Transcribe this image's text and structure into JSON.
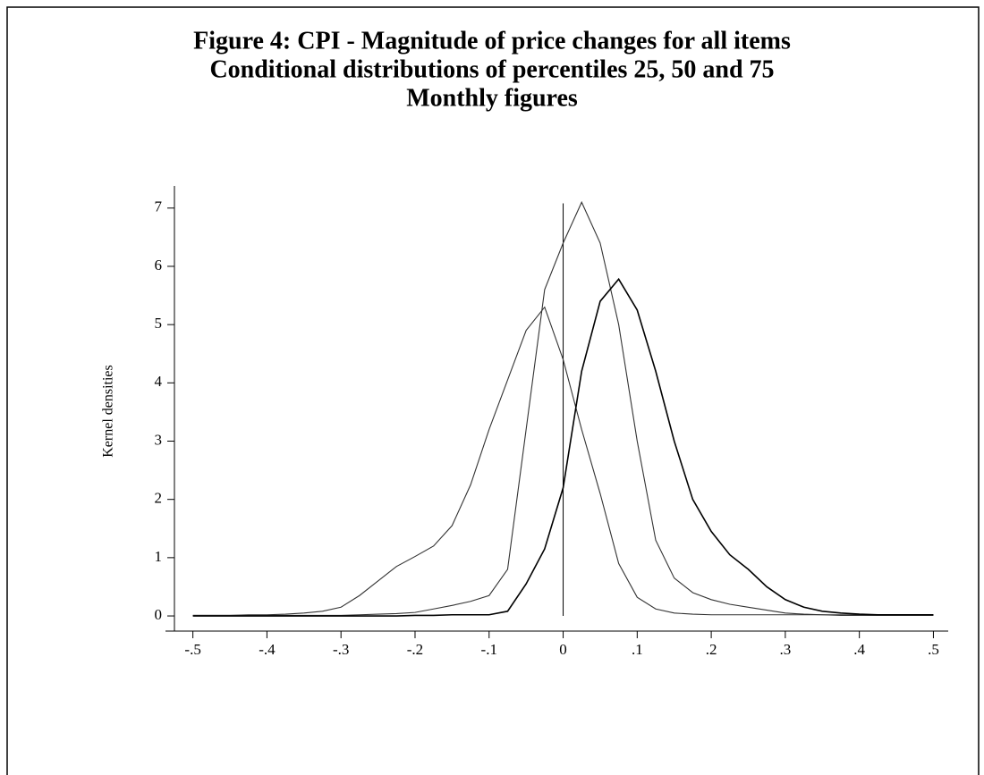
{
  "chart_data": {
    "type": "line",
    "title": [
      "Figure 4: CPI - Magnitude of price changes for all items",
      "Conditional distributions of percentiles 25, 50 and 75",
      "Monthly figures"
    ],
    "y_label": "Kernel densities",
    "x": [
      -0.5,
      -0.475,
      -0.45,
      -0.425,
      -0.4,
      -0.375,
      -0.35,
      -0.325,
      -0.3,
      -0.275,
      -0.25,
      -0.225,
      -0.2,
      -0.175,
      -0.15,
      -0.125,
      -0.1,
      -0.075,
      -0.05,
      -0.025,
      0,
      0.025,
      0.05,
      0.075,
      0.1,
      0.125,
      0.15,
      0.175,
      0.2,
      0.225,
      0.25,
      0.275,
      0.3,
      0.325,
      0.35,
      0.375,
      0.4,
      0.425,
      0.45,
      0.475,
      0.5
    ],
    "series": [
      {
        "color": "#333333",
        "values": [
          0.01,
          0.01,
          0.01,
          0.02,
          0.02,
          0.03,
          0.05,
          0.08,
          0.15,
          0.35,
          0.6,
          0.85,
          1.02,
          1.2,
          1.55,
          2.25,
          3.2,
          4.05,
          4.9,
          5.3,
          4.4,
          3.2,
          2.1,
          0.9,
          0.32,
          0.12,
          0.05,
          0.03,
          0.02,
          0.02,
          0.02,
          0.02,
          0.02,
          0.02,
          0.02,
          0.02,
          0.02,
          0.02,
          0.02,
          0.02,
          0.02
        ]
      },
      {
        "color": "#333333",
        "values": [
          0.01,
          0.01,
          0.01,
          0.01,
          0.01,
          0.01,
          0.01,
          0.01,
          0.01,
          0.02,
          0.03,
          0.04,
          0.06,
          0.12,
          0.18,
          0.25,
          0.35,
          0.8,
          3.2,
          5.6,
          6.4,
          7.1,
          6.4,
          5.0,
          3.0,
          1.3,
          0.65,
          0.4,
          0.28,
          0.2,
          0.15,
          0.1,
          0.05,
          0.03,
          0.02,
          0.01,
          0.01,
          0.01,
          0.01,
          0.01,
          0.01
        ]
      },
      {
        "color": "#000000",
        "values": [
          0,
          0,
          0,
          0,
          0,
          0,
          0,
          0,
          0,
          0,
          0,
          0,
          0.01,
          0.01,
          0.02,
          0.02,
          0.02,
          0.08,
          0.55,
          1.15,
          2.2,
          4.2,
          5.4,
          5.78,
          5.25,
          4.2,
          3.0,
          2.0,
          1.45,
          1.05,
          0.8,
          0.5,
          0.28,
          0.15,
          0.08,
          0.05,
          0.03,
          0.02,
          0.02,
          0.02,
          0.02
        ]
      }
    ],
    "vline": {
      "x": 0,
      "y": [
        0,
        7.08
      ]
    },
    "xlim": [
      -0.537,
      0.52
    ],
    "ylim": [
      -0.26,
      7.38
    ],
    "xticks": [
      {
        "value": -0.5,
        "label": "-.5"
      },
      {
        "value": -0.4,
        "label": "-.4"
      },
      {
        "value": -0.3,
        "label": "-.3"
      },
      {
        "value": -0.2,
        "label": "-.2"
      },
      {
        "value": -0.1,
        "label": "-.1"
      },
      0,
      {
        "value": 0.1,
        "label": ".1"
      },
      {
        "value": 0.2,
        "label": ".2"
      },
      {
        "value": 0.3,
        "label": ".3"
      },
      {
        "value": 0.4,
        "label": ".4"
      },
      {
        "value": 0.5,
        "label": ".5"
      }
    ],
    "yticks": [
      0,
      1,
      2,
      3,
      4,
      5,
      6,
      7
    ],
    "grid": false
  }
}
